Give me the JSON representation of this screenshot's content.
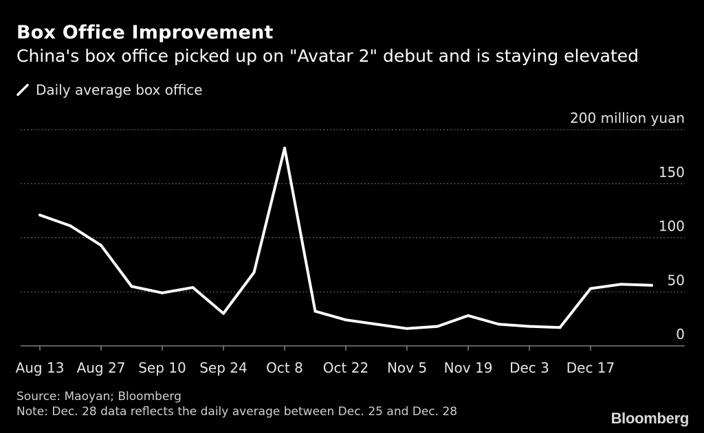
{
  "header": {
    "title": "Box Office Improvement",
    "subtitle": "China's box office picked up on \"Avatar 2\" debut and is staying elevated"
  },
  "legend": {
    "label": "Daily average box office"
  },
  "footer": {
    "source": "Source: Maoyan; Bloomberg",
    "note": "Note: Dec. 28 data reflects the daily average between Dec. 25 and Dec. 28"
  },
  "brand": {
    "name": "Bloomberg"
  },
  "colors": {
    "background": "#000000",
    "line": "#ffffff",
    "grid": "#777777",
    "text": "#e6e6e6"
  },
  "chart_data": {
    "type": "line",
    "title": "Box Office Improvement",
    "subtitle": "China's box office picked up on \"Avatar 2\" debut and is staying elevated",
    "unit_label": "200 million yuan",
    "ylim": [
      0,
      200
    ],
    "yticks": [
      0,
      50,
      100,
      150,
      200
    ],
    "ytick_labels": [
      "0",
      "50",
      "100",
      "150",
      "200 million yuan"
    ],
    "x_tick_labels": [
      "Aug 13",
      "Aug 27",
      "Sep 10",
      "Sep 24",
      "Oct 8",
      "Oct 22",
      "Nov 5",
      "Nov 19",
      "Dec 3",
      "Dec 17"
    ],
    "x_tick_index": [
      0,
      2,
      4,
      6,
      8,
      10,
      12,
      14,
      16,
      18
    ],
    "grid": true,
    "legend_position": "top-left",
    "series": [
      {
        "name": "Daily average box office",
        "x": [
          "Aug 13",
          "Aug 20",
          "Aug 27",
          "Sep 3",
          "Sep 10",
          "Sep 17",
          "Sep 24",
          "Oct 1",
          "Oct 8",
          "Oct 15",
          "Oct 22",
          "Oct 29",
          "Nov 5",
          "Nov 12",
          "Nov 19",
          "Nov 26",
          "Dec 3",
          "Dec 10",
          "Dec 17",
          "Dec 24",
          "Dec 28"
        ],
        "values": [
          121,
          111,
          93,
          55,
          49,
          54,
          30,
          68,
          183,
          32,
          24,
          20,
          16,
          18,
          28,
          20,
          18,
          17,
          53,
          57,
          56
        ]
      }
    ]
  }
}
